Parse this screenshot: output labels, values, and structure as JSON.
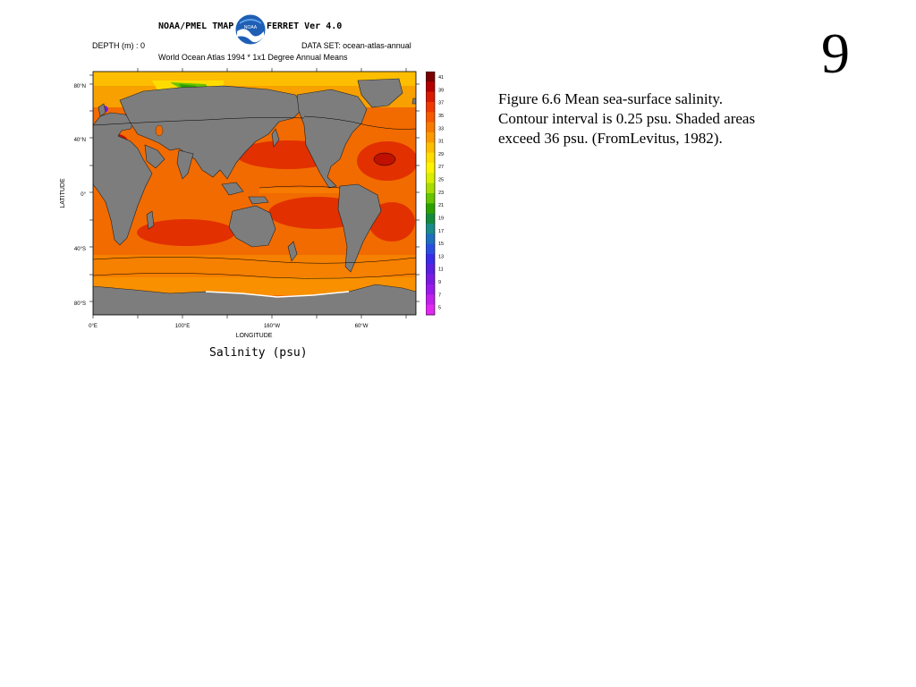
{
  "slide_number": "9",
  "caption": {
    "line1": "Figure 6.6 Mean sea-surface salinity.",
    "line2": "Contour interval is 0.25 psu. Shaded areas",
    "line3": "exceed 36 psu. (FromLevitus, 1982)."
  },
  "figure": {
    "title": "NOAA/PMEL TMAP",
    "version": "FERRET Ver 4.0",
    "depth": "DEPTH (m) : 0",
    "dataset": "DATA SET: ocean-atlas-annual",
    "subtitle": "World Ocean Atlas 1994 * 1x1 Degree Annual Means",
    "logo_text": "NOAA",
    "xlabel": "LONGITUDE",
    "ylabel": "LATITUDE",
    "footer": "Salinity (psu)",
    "x_ticks": [
      "0°E",
      "100°E",
      "160°W",
      "60°W"
    ],
    "y_ticks": [
      "80°N",
      "40°N",
      "0°",
      "40°S",
      "80°S"
    ],
    "colorbar": {
      "labels": [
        "41",
        "39",
        "37",
        "35",
        "33",
        "31",
        "29",
        "27",
        "25",
        "23",
        "21",
        "19",
        "17",
        "15",
        "13",
        "11",
        "9",
        "7",
        "5"
      ],
      "colors": [
        "#7a0000",
        "#b40000",
        "#d81a00",
        "#ee3a00",
        "#f55a00",
        "#f87a00",
        "#fb9a00",
        "#fdbd00",
        "#ffdc00",
        "#fff200",
        "#d9ee00",
        "#a9dc00",
        "#66c400",
        "#2ca000",
        "#148a3c",
        "#1a8a8a",
        "#1e6fbe",
        "#2a4fe0",
        "#3a2ce8",
        "#5a20e0",
        "#7a1ce0",
        "#9a1aea",
        "#c020ea",
        "#e028f0"
      ],
      "values": [
        41,
        39,
        37,
        35,
        33,
        31,
        29,
        27,
        25,
        23,
        21,
        19,
        17,
        15,
        13,
        11,
        9,
        7,
        5
      ]
    },
    "colors": {
      "land": "#7d7d7d",
      "ocean_base": "#f26b00",
      "high_salinity": "#e23000",
      "low_salinity": "#f8a000"
    }
  }
}
